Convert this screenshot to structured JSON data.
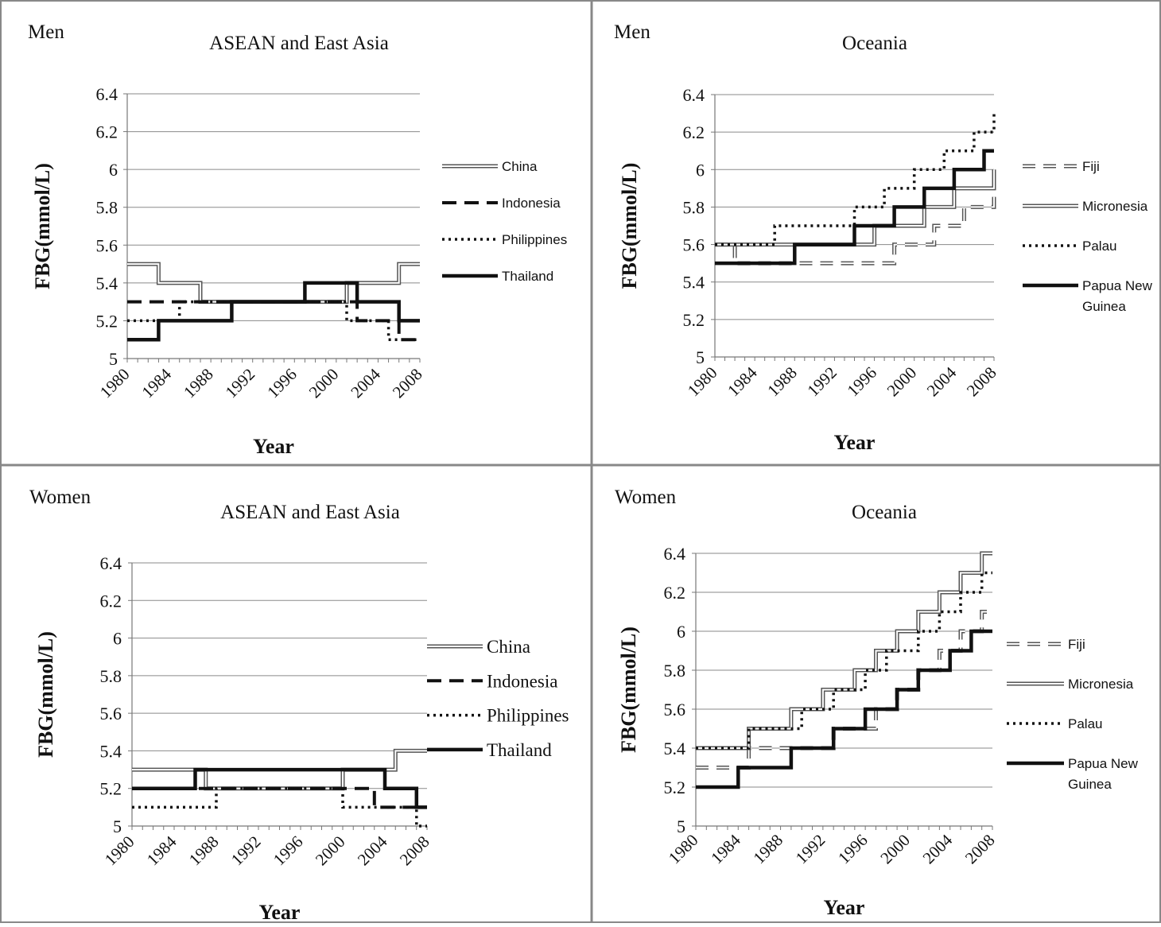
{
  "figure": {
    "xlabel": "Year",
    "ylabel": "FBG(mmol/L)"
  },
  "chart_data": [
    {
      "type": "line",
      "group": "Men",
      "title": "ASEAN and East Asia",
      "xlabel": "Year",
      "ylabel": "FBG(mmol/L)",
      "ylim": [
        5,
        6.4
      ],
      "xlim": [
        1980,
        2008
      ],
      "yticks": [
        "5",
        "5.2",
        "5.4",
        "5.6",
        "5.8",
        "6",
        "6.2",
        "6.4"
      ],
      "xticks": [
        "1980",
        "1984",
        "1988",
        "1992",
        "1996",
        "2000",
        "2004",
        "2008"
      ],
      "grid": true,
      "legend_position": "right",
      "x": [
        1980,
        1981,
        1982,
        1983,
        1984,
        1985,
        1986,
        1987,
        1988,
        1989,
        1990,
        1991,
        1992,
        1993,
        1994,
        1995,
        1996,
        1997,
        1998,
        1999,
        2000,
        2001,
        2002,
        2003,
        2004,
        2005,
        2006,
        2007,
        2008
      ],
      "series": [
        {
          "name": "China",
          "style": "double",
          "values": [
            5.5,
            5.5,
            5.5,
            5.4,
            5.4,
            5.4,
            5.4,
            5.3,
            5.3,
            5.3,
            5.3,
            5.3,
            5.3,
            5.3,
            5.3,
            5.3,
            5.3,
            5.3,
            5.3,
            5.3,
            5.3,
            5.4,
            5.4,
            5.4,
            5.4,
            5.4,
            5.5,
            5.5,
            5.5
          ]
        },
        {
          "name": "Indonesia",
          "style": "dashed",
          "values": [
            5.3,
            5.3,
            5.3,
            5.3,
            5.3,
            5.3,
            5.3,
            5.3,
            5.3,
            5.3,
            5.3,
            5.3,
            5.3,
            5.3,
            5.3,
            5.3,
            5.3,
            5.3,
            5.3,
            5.3,
            5.3,
            5.3,
            5.2,
            5.2,
            5.2,
            5.2,
            5.1,
            5.1,
            5.1
          ]
        },
        {
          "name": "Philippines",
          "style": "dotted",
          "values": [
            5.2,
            5.2,
            5.2,
            5.2,
            5.2,
            5.3,
            5.3,
            5.3,
            5.3,
            5.3,
            5.3,
            5.3,
            5.3,
            5.3,
            5.3,
            5.3,
            5.3,
            5.3,
            5.3,
            5.3,
            5.3,
            5.2,
            5.2,
            5.2,
            5.2,
            5.1,
            5.1,
            5.1,
            5.1
          ]
        },
        {
          "name": "Thailand",
          "style": "solid",
          "values": [
            5.1,
            5.1,
            5.1,
            5.2,
            5.2,
            5.2,
            5.2,
            5.2,
            5.2,
            5.2,
            5.3,
            5.3,
            5.3,
            5.3,
            5.3,
            5.3,
            5.3,
            5.4,
            5.4,
            5.4,
            5.4,
            5.4,
            5.3,
            5.3,
            5.3,
            5.3,
            5.2,
            5.2,
            5.2
          ]
        }
      ]
    },
    {
      "type": "line",
      "group": "Men",
      "title": "Oceania",
      "xlabel": "Year",
      "ylabel": "FBG(mmol/L)",
      "ylim": [
        5,
        6.4
      ],
      "xlim": [
        1980,
        2008
      ],
      "yticks": [
        "5",
        "5.2",
        "5.4",
        "5.6",
        "5.8",
        "6",
        "6.2",
        "6.4"
      ],
      "xticks": [
        "1980",
        "1984",
        "1988",
        "1992",
        "1996",
        "2000",
        "2004",
        "2008"
      ],
      "grid": true,
      "legend_position": "right",
      "x": [
        1980,
        1981,
        1982,
        1983,
        1984,
        1985,
        1986,
        1987,
        1988,
        1989,
        1990,
        1991,
        1992,
        1993,
        1994,
        1995,
        1996,
        1997,
        1998,
        1999,
        2000,
        2001,
        2002,
        2003,
        2004,
        2005,
        2006,
        2007,
        2008
      ],
      "series": [
        {
          "name": "Fiji",
          "style": "dashed-double",
          "values": [
            5.6,
            5.6,
            5.5,
            5.5,
            5.5,
            5.5,
            5.5,
            5.5,
            5.5,
            5.5,
            5.5,
            5.5,
            5.5,
            5.5,
            5.5,
            5.5,
            5.5,
            5.5,
            5.6,
            5.6,
            5.6,
            5.6,
            5.7,
            5.7,
            5.7,
            5.8,
            5.8,
            5.8,
            5.9
          ]
        },
        {
          "name": "Micronesia",
          "style": "double",
          "values": [
            5.6,
            5.6,
            5.6,
            5.6,
            5.6,
            5.6,
            5.6,
            5.6,
            5.6,
            5.6,
            5.6,
            5.6,
            5.6,
            5.6,
            5.6,
            5.6,
            5.7,
            5.7,
            5.7,
            5.7,
            5.7,
            5.8,
            5.8,
            5.8,
            5.9,
            5.9,
            5.9,
            5.9,
            6.0
          ]
        },
        {
          "name": "Palau",
          "style": "dotted",
          "values": [
            5.6,
            5.6,
            5.6,
            5.6,
            5.6,
            5.6,
            5.7,
            5.7,
            5.7,
            5.7,
            5.7,
            5.7,
            5.7,
            5.7,
            5.8,
            5.8,
            5.8,
            5.9,
            5.9,
            5.9,
            6.0,
            6.0,
            6.0,
            6.1,
            6.1,
            6.1,
            6.2,
            6.2,
            6.3
          ]
        },
        {
          "name": "Papua New Guinea",
          "style": "solid",
          "values": [
            5.5,
            5.5,
            5.5,
            5.5,
            5.5,
            5.5,
            5.5,
            5.5,
            5.6,
            5.6,
            5.6,
            5.6,
            5.6,
            5.6,
            5.7,
            5.7,
            5.7,
            5.7,
            5.8,
            5.8,
            5.8,
            5.9,
            5.9,
            5.9,
            6.0,
            6.0,
            6.0,
            6.1,
            6.1
          ]
        }
      ]
    },
    {
      "type": "line",
      "group": "Women",
      "title": "ASEAN and East Asia",
      "xlabel": "Year",
      "ylabel": "FBG(mmol/L)",
      "ylim": [
        5,
        6.4
      ],
      "xlim": [
        1980,
        2008
      ],
      "yticks": [
        "5",
        "5.2",
        "5.4",
        "5.6",
        "5.8",
        "6",
        "6.2",
        "6.4"
      ],
      "xticks": [
        "1980",
        "1984",
        "1988",
        "1992",
        "1996",
        "2000",
        "2004",
        "2008"
      ],
      "grid": true,
      "legend_position": "right",
      "x": [
        1980,
        1981,
        1982,
        1983,
        1984,
        1985,
        1986,
        1987,
        1988,
        1989,
        1990,
        1991,
        1992,
        1993,
        1994,
        1995,
        1996,
        1997,
        1998,
        1999,
        2000,
        2001,
        2002,
        2003,
        2004,
        2005,
        2006,
        2007,
        2008
      ],
      "series": [
        {
          "name": "China",
          "style": "double",
          "values": [
            5.3,
            5.3,
            5.3,
            5.3,
            5.3,
            5.3,
            5.3,
            5.2,
            5.2,
            5.2,
            5.2,
            5.2,
            5.2,
            5.2,
            5.2,
            5.2,
            5.2,
            5.2,
            5.2,
            5.2,
            5.3,
            5.3,
            5.3,
            5.3,
            5.3,
            5.4,
            5.4,
            5.4,
            5.4
          ]
        },
        {
          "name": "Indonesia",
          "style": "dashed",
          "values": [
            5.2,
            5.2,
            5.2,
            5.2,
            5.2,
            5.2,
            5.2,
            5.2,
            5.2,
            5.2,
            5.2,
            5.2,
            5.2,
            5.2,
            5.2,
            5.2,
            5.2,
            5.2,
            5.2,
            5.2,
            5.2,
            5.2,
            5.2,
            5.1,
            5.1,
            5.1,
            5.1,
            5.1,
            5.1
          ]
        },
        {
          "name": "Philippines",
          "style": "dotted",
          "values": [
            5.1,
            5.1,
            5.1,
            5.1,
            5.1,
            5.1,
            5.1,
            5.1,
            5.2,
            5.2,
            5.2,
            5.2,
            5.2,
            5.2,
            5.2,
            5.2,
            5.2,
            5.2,
            5.2,
            5.2,
            5.1,
            5.1,
            5.1,
            5.1,
            5.1,
            5.1,
            5.1,
            5.0,
            5.0
          ]
        },
        {
          "name": "Thailand",
          "style": "solid",
          "values": [
            5.2,
            5.2,
            5.2,
            5.2,
            5.2,
            5.2,
            5.3,
            5.3,
            5.3,
            5.3,
            5.3,
            5.3,
            5.3,
            5.3,
            5.3,
            5.3,
            5.3,
            5.3,
            5.3,
            5.3,
            5.3,
            5.3,
            5.3,
            5.3,
            5.2,
            5.2,
            5.2,
            5.1,
            5.1
          ]
        }
      ]
    },
    {
      "type": "line",
      "group": "Women",
      "title": "Oceania",
      "xlabel": "Year",
      "ylabel": "FBG(mmol/L)",
      "ylim": [
        5,
        6.4
      ],
      "xlim": [
        1980,
        2008
      ],
      "yticks": [
        "5",
        "5.2",
        "5.4",
        "5.6",
        "5.8",
        "6",
        "6.2",
        "6.4"
      ],
      "xticks": [
        "1980",
        "1984",
        "1988",
        "1992",
        "1996",
        "2000",
        "2004",
        "2008"
      ],
      "grid": true,
      "legend_position": "right",
      "x": [
        1980,
        1981,
        1982,
        1983,
        1984,
        1985,
        1986,
        1987,
        1988,
        1989,
        1990,
        1991,
        1992,
        1993,
        1994,
        1995,
        1996,
        1997,
        1998,
        1999,
        2000,
        2001,
        2002,
        2003,
        2004,
        2005,
        2006,
        2007,
        2008
      ],
      "series": [
        {
          "name": "Fiji",
          "style": "dashed-double",
          "values": [
            5.3,
            5.3,
            5.3,
            5.3,
            5.3,
            5.4,
            5.4,
            5.4,
            5.4,
            5.4,
            5.4,
            5.4,
            5.4,
            5.5,
            5.5,
            5.5,
            5.5,
            5.6,
            5.6,
            5.7,
            5.7,
            5.8,
            5.8,
            5.9,
            5.9,
            6.0,
            6.0,
            6.1,
            6.1
          ]
        },
        {
          "name": "Micronesia",
          "style": "double",
          "values": [
            5.4,
            5.4,
            5.4,
            5.4,
            5.4,
            5.5,
            5.5,
            5.5,
            5.5,
            5.6,
            5.6,
            5.6,
            5.7,
            5.7,
            5.7,
            5.8,
            5.8,
            5.9,
            5.9,
            6.0,
            6.0,
            6.1,
            6.1,
            6.2,
            6.2,
            6.3,
            6.3,
            6.4,
            6.4
          ]
        },
        {
          "name": "Palau",
          "style": "dotted",
          "values": [
            5.4,
            5.4,
            5.4,
            5.4,
            5.4,
            5.5,
            5.5,
            5.5,
            5.5,
            5.5,
            5.6,
            5.6,
            5.6,
            5.7,
            5.7,
            5.7,
            5.8,
            5.8,
            5.9,
            5.9,
            5.9,
            6.0,
            6.0,
            6.1,
            6.1,
            6.2,
            6.2,
            6.3,
            6.3
          ]
        },
        {
          "name": "Papua New Guinea",
          "style": "solid",
          "values": [
            5.2,
            5.2,
            5.2,
            5.2,
            5.3,
            5.3,
            5.3,
            5.3,
            5.3,
            5.4,
            5.4,
            5.4,
            5.4,
            5.5,
            5.5,
            5.5,
            5.6,
            5.6,
            5.6,
            5.7,
            5.7,
            5.8,
            5.8,
            5.8,
            5.9,
            5.9,
            6.0,
            6.0,
            6.0
          ]
        }
      ]
    }
  ]
}
